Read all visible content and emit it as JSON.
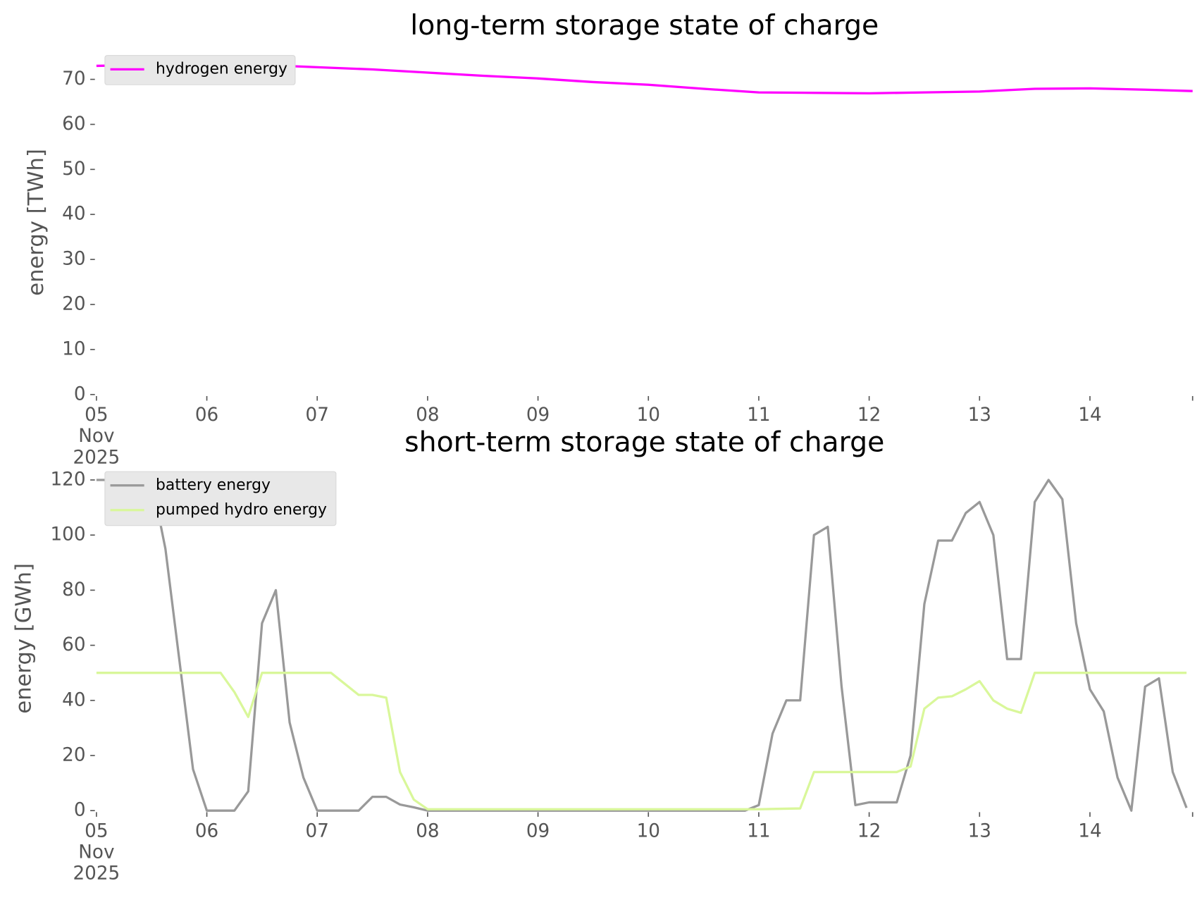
{
  "chart_data": [
    {
      "type": "line",
      "title": "long-term storage state of charge",
      "ylabel": "energy [TWh]",
      "x": [
        0,
        0.5,
        1,
        1.5,
        2,
        2.5,
        3,
        3.5,
        4,
        4.5,
        5,
        5.5,
        6,
        6.5,
        7,
        7.5,
        8,
        8.5,
        9,
        9.5,
        9.93
      ],
      "series": [
        {
          "name": "hydrogen energy",
          "color": "#ff00ff",
          "values": [
            73,
            73.2,
            73.3,
            73.2,
            72.7,
            72.2,
            71.5,
            70.8,
            70.2,
            69.4,
            68.8,
            67.9,
            67.1,
            67,
            66.9,
            67.1,
            67.3,
            67.9,
            68,
            67.7,
            67.4
          ]
        }
      ],
      "xlim": [
        0,
        9.93
      ],
      "xticks": [
        {
          "value": 0,
          "label": "05\nNov\n2025"
        },
        {
          "value": 1,
          "label": "06"
        },
        {
          "value": 2,
          "label": "07"
        },
        {
          "value": 3,
          "label": "08"
        },
        {
          "value": 4,
          "label": "09"
        },
        {
          "value": 5,
          "label": "10"
        },
        {
          "value": 6,
          "label": "11"
        },
        {
          "value": 7,
          "label": "12"
        },
        {
          "value": 8,
          "label": "13"
        },
        {
          "value": 9,
          "label": "14"
        }
      ],
      "ylim": [
        0,
        76.5
      ],
      "yticks": [
        0,
        10,
        20,
        30,
        40,
        50,
        60,
        70
      ],
      "grid": false,
      "legend": "upper left"
    },
    {
      "type": "line",
      "title": "short-term storage state of charge",
      "ylabel": "energy [GWh]",
      "x": [
        0,
        0.125,
        0.25,
        0.375,
        0.5,
        0.625,
        0.75,
        0.875,
        1,
        1.125,
        1.25,
        1.375,
        1.5,
        1.625,
        1.75,
        1.875,
        2,
        2.125,
        2.25,
        2.375,
        2.5,
        2.625,
        2.75,
        2.875,
        3,
        3.125,
        3.25,
        3.375,
        3.5,
        3.625,
        3.75,
        3.875,
        4,
        4.125,
        4.25,
        4.375,
        4.5,
        4.625,
        4.75,
        4.875,
        5,
        5.125,
        5.25,
        5.375,
        5.5,
        5.625,
        5.75,
        5.875,
        6,
        6.125,
        6.25,
        6.375,
        6.5,
        6.625,
        6.75,
        6.875,
        7,
        7.125,
        7.25,
        7.375,
        7.5,
        7.625,
        7.75,
        7.875,
        8,
        8.125,
        8.25,
        8.375,
        8.5,
        8.625,
        8.75,
        8.875,
        9,
        9.125,
        9.25,
        9.375,
        9.5,
        9.625,
        9.75,
        9.875
      ],
      "series": [
        {
          "name": "battery energy",
          "color": "#999999",
          "values": [
            120,
            120,
            120,
            120,
            120,
            95,
            55,
            15,
            0,
            0,
            0,
            7,
            68,
            80,
            32,
            12,
            0,
            0,
            0,
            0,
            5,
            5,
            2.2,
            1.2,
            0,
            0,
            0,
            0,
            0,
            0,
            0,
            0,
            0,
            0,
            0,
            0,
            0,
            0,
            0,
            0,
            0,
            0,
            0,
            0,
            0,
            0,
            0,
            0,
            2,
            28,
            40,
            40,
            100,
            103,
            45,
            2,
            3,
            3,
            3,
            20,
            75,
            98,
            98,
            108,
            112,
            100,
            55,
            55,
            112,
            120,
            113,
            68,
            44,
            36,
            12,
            0,
            45,
            48,
            14,
            1
          ]
        },
        {
          "name": "pumped hydro energy",
          "color": "#d9f79a",
          "values": [
            50,
            50,
            50,
            50,
            50,
            50,
            50,
            50,
            50,
            50,
            43,
            34,
            50,
            50,
            50,
            50,
            50,
            50,
            46,
            42,
            42,
            41,
            14,
            4,
            0.5,
            0.5,
            0.5,
            0.5,
            0.5,
            0.5,
            0.5,
            0.5,
            0.5,
            0.5,
            0.5,
            0.5,
            0.5,
            0.5,
            0.5,
            0.5,
            0.5,
            0.5,
            0.5,
            0.5,
            0.5,
            0.5,
            0.5,
            0.5,
            0.5,
            0.6,
            0.7,
            0.8,
            14,
            14,
            14,
            14,
            14,
            14,
            14,
            16,
            37,
            41,
            41.5,
            44,
            47,
            40,
            37,
            35.5,
            50,
            50,
            50,
            50,
            50,
            50,
            50,
            50,
            50,
            50,
            50,
            50
          ]
        }
      ],
      "xlim": [
        0,
        9.93
      ],
      "xticks": [
        {
          "value": 0,
          "label": "05\nNov\n2025"
        },
        {
          "value": 1,
          "label": "06"
        },
        {
          "value": 2,
          "label": "07"
        },
        {
          "value": 3,
          "label": "08"
        },
        {
          "value": 4,
          "label": "09"
        },
        {
          "value": 5,
          "label": "10"
        },
        {
          "value": 6,
          "label": "11"
        },
        {
          "value": 7,
          "label": "12"
        },
        {
          "value": 8,
          "label": "13"
        },
        {
          "value": 9,
          "label": "14"
        }
      ],
      "ylim": [
        0,
        125
      ],
      "yticks": [
        0,
        20,
        40,
        60,
        80,
        100,
        120
      ],
      "grid": false,
      "legend": "upper left"
    }
  ]
}
